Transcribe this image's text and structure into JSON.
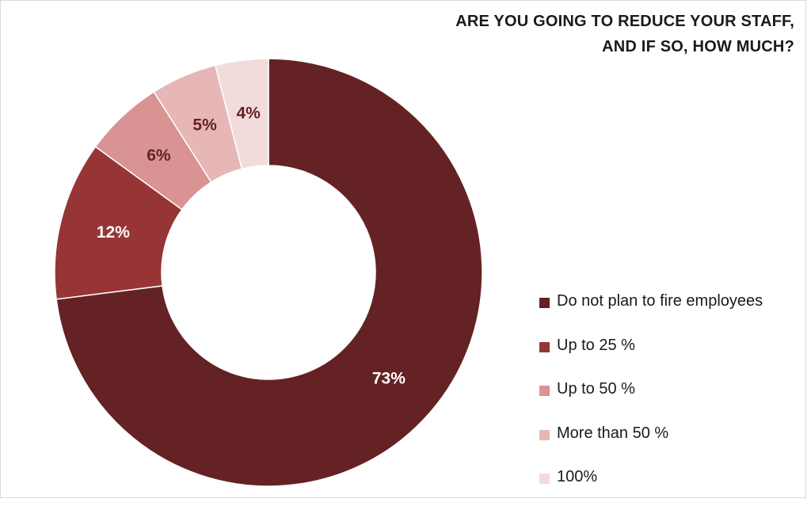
{
  "chart_data": {
    "type": "pie",
    "variant": "donut",
    "title_lines": [
      "ARE YOU GOING TO REDUCE YOUR STAFF,",
      "AND IF SO, HOW MUCH?"
    ],
    "legend_position": "right",
    "slices": [
      {
        "label": "Do not plan to fire employees",
        "value": 73,
        "display": "73%",
        "color": "#642224",
        "text_color": "#ffffff"
      },
      {
        "label": "Up to 25 %",
        "value": 12,
        "display": "12%",
        "color": "#973536",
        "text_color": "#ffffff"
      },
      {
        "label": "Up to 50 %",
        "value": 6,
        "display": "6%",
        "color": "#d89392",
        "text_color": "#642224"
      },
      {
        "label": "More than 50 %",
        "value": 5,
        "display": "5%",
        "color": "#e7b6b6",
        "text_color": "#642224"
      },
      {
        "label": "100%",
        "value": 4,
        "display": "4%",
        "color": "#f2dcdb",
        "text_color": "#642224"
      }
    ]
  }
}
